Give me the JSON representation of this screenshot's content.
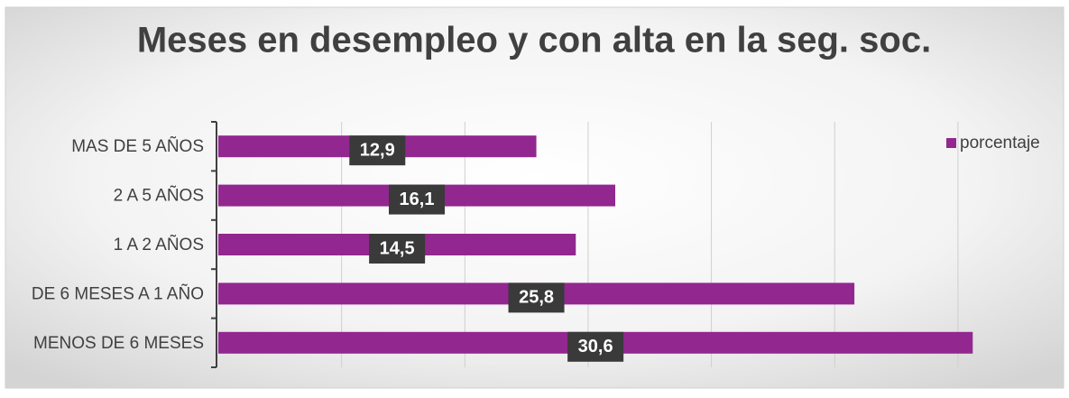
{
  "chart_data": {
    "type": "hbar",
    "title": "Meses en desempleo y con alta en la seg. soc.",
    "categories": [
      "MAS DE 5 AÑOS",
      "2 A 5 AÑOS",
      "1 A 2 AÑOS",
      "DE 6 MESES A 1 AÑO",
      "MENOS DE 6 MESES"
    ],
    "series": [
      {
        "name": "porcentaje",
        "color": "#92278f",
        "values": [
          12.9,
          16.1,
          14.5,
          25.8,
          30.6
        ],
        "value_labels": [
          "12,9",
          "16,1",
          "14,5",
          "25,8",
          "30,6"
        ]
      }
    ],
    "xlim": [
      0,
      31
    ],
    "xticks": [
      0,
      5,
      10,
      15,
      20,
      25,
      30
    ],
    "grid": true,
    "legend": "top-right"
  }
}
